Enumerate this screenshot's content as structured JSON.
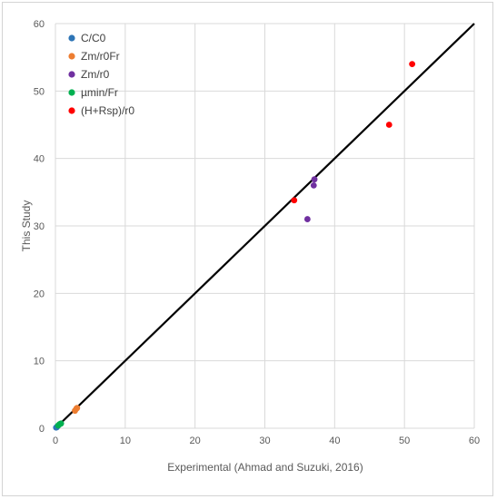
{
  "chart_data": {
    "type": "scatter",
    "title": "",
    "xlabel": "Experimental (Ahmad and Suzuki, 2016)",
    "ylabel": "This Study",
    "xlim": [
      0,
      60
    ],
    "ylim": [
      0,
      60
    ],
    "x_ticks": [
      "0",
      "10",
      "20",
      "30",
      "40",
      "50",
      "60"
    ],
    "y_ticks": [
      "0",
      "10",
      "20",
      "30",
      "40",
      "50",
      "60"
    ],
    "grid": true,
    "legend_position": "top-left",
    "reference_line": {
      "x": [
        0,
        60
      ],
      "y": [
        0,
        60
      ],
      "color": "#000000"
    },
    "series": [
      {
        "name": "C/C0",
        "color": "#2E75B6",
        "points": [
          [
            0.1,
            0.1
          ],
          [
            0.2,
            0.15
          ],
          [
            0.3,
            0.3
          ]
        ]
      },
      {
        "name": "Zm/r0Fr",
        "color": "#ED7D31",
        "points": [
          [
            2.8,
            2.6
          ],
          [
            3.0,
            2.9
          ],
          [
            3.1,
            3.0
          ]
        ]
      },
      {
        "name": "Zm/r0",
        "color": "#7030A0",
        "points": [
          [
            36.1,
            31.0
          ],
          [
            37.0,
            36.0
          ],
          [
            37.1,
            36.9
          ]
        ]
      },
      {
        "name": "µmin/Fr",
        "color": "#00B050",
        "points": [
          [
            0.4,
            0.4
          ],
          [
            0.6,
            0.6
          ],
          [
            0.8,
            0.7
          ]
        ]
      },
      {
        "name": "(H+Rsp)/r0",
        "color": "#FF0000",
        "points": [
          [
            34.2,
            33.8
          ],
          [
            47.8,
            45.0
          ],
          [
            51.1,
            54.0
          ]
        ]
      }
    ]
  }
}
